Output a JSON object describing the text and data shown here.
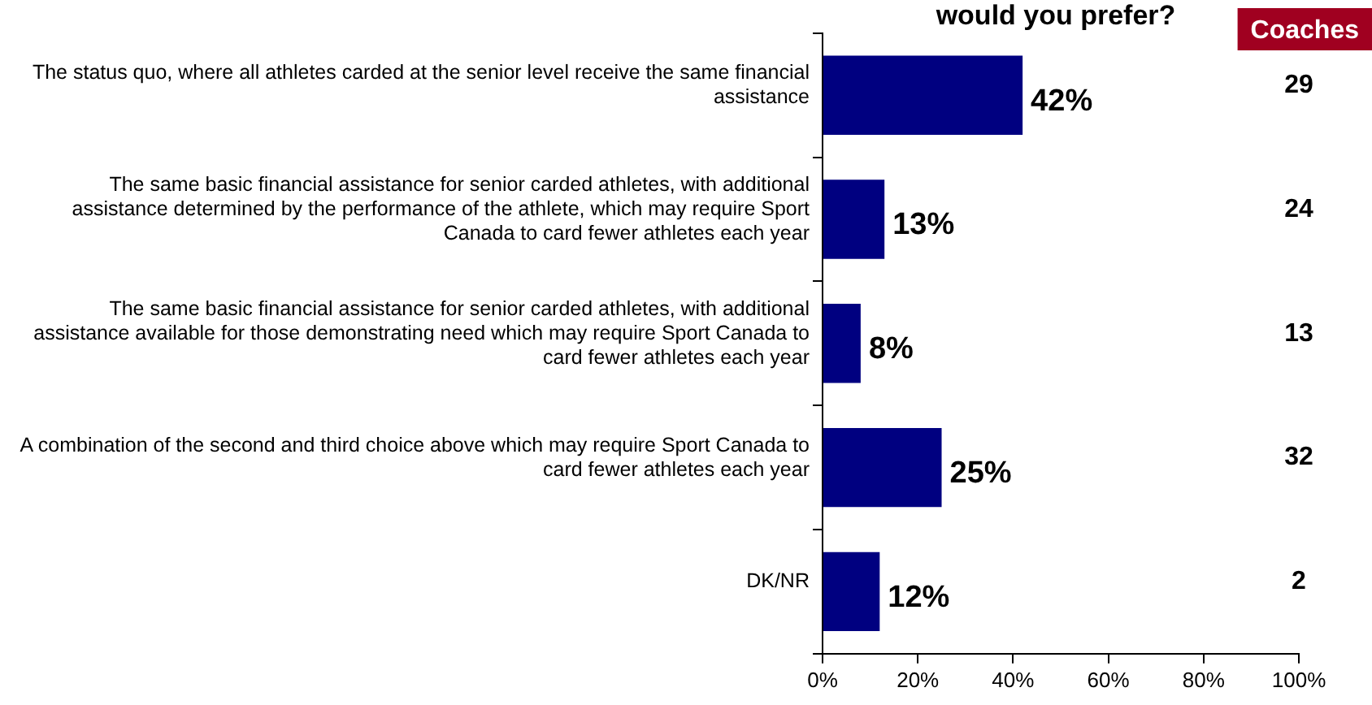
{
  "chart_data": {
    "type": "bar",
    "orientation": "horizontal",
    "title": "would you prefer?",
    "categories": [
      "The status quo, where all athletes carded at the senior level receive the same financial assistance",
      "The same basic financial assistance for senior carded athletes, with additional assistance determined by the performance of the athlete, which may require Sport Canada to card fewer athletes each year",
      "The same basic financial assistance for senior carded athletes, with additional assistance available for those demonstrating need which may require Sport Canada to card fewer athletes each year",
      "A combination of the second and third choice above which may require Sport Canada to card fewer athletes each year",
      "DK/NR"
    ],
    "values": [
      42,
      13,
      8,
      25,
      12
    ],
    "color": "#000080",
    "value_labels": [
      "42%",
      "13%",
      "8%",
      "25%",
      "12%"
    ],
    "xlim": [
      0,
      100
    ],
    "xticks": [
      {
        "value": 0,
        "label": "0%"
      },
      {
        "value": 20,
        "label": "20%"
      },
      {
        "value": 40,
        "label": "40%"
      },
      {
        "value": 60,
        "label": "60%"
      },
      {
        "value": 80,
        "label": "80%"
      },
      {
        "value": 100,
        "label": "100%"
      }
    ],
    "annotations": [
      "Coaches",
      "29",
      "24",
      "13",
      "32",
      "2"
    ],
    "grid": false,
    "legend": false
  }
}
